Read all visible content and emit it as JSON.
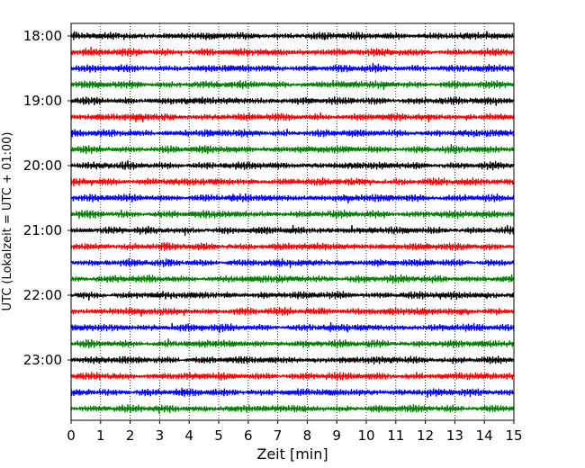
{
  "chart_data": {
    "type": "line",
    "title": "",
    "xlabel": "Zeit  [min]",
    "ylabel": "UTC (Lokalzeit = UTC + 01:00)",
    "xlim": [
      0,
      15
    ],
    "x_ticks": [
      "0",
      "1",
      "2",
      "3",
      "4",
      "5",
      "6",
      "7",
      "8",
      "9",
      "10",
      "11",
      "12",
      "13",
      "14",
      "15"
    ],
    "y_tick_labels": [
      "18:00",
      "19:00",
      "20:00",
      "21:00",
      "22:00",
      "23:00"
    ],
    "grid": "vertical dotted lines at each minute",
    "row_interval_minutes": 15,
    "row_count": 24,
    "rows_start": "18:00",
    "color_cycle": [
      "#000000",
      "#ff0000",
      "#0000ff",
      "#008000"
    ],
    "trace_description": "continuous seismogram, one 15-minute trace per row"
  }
}
